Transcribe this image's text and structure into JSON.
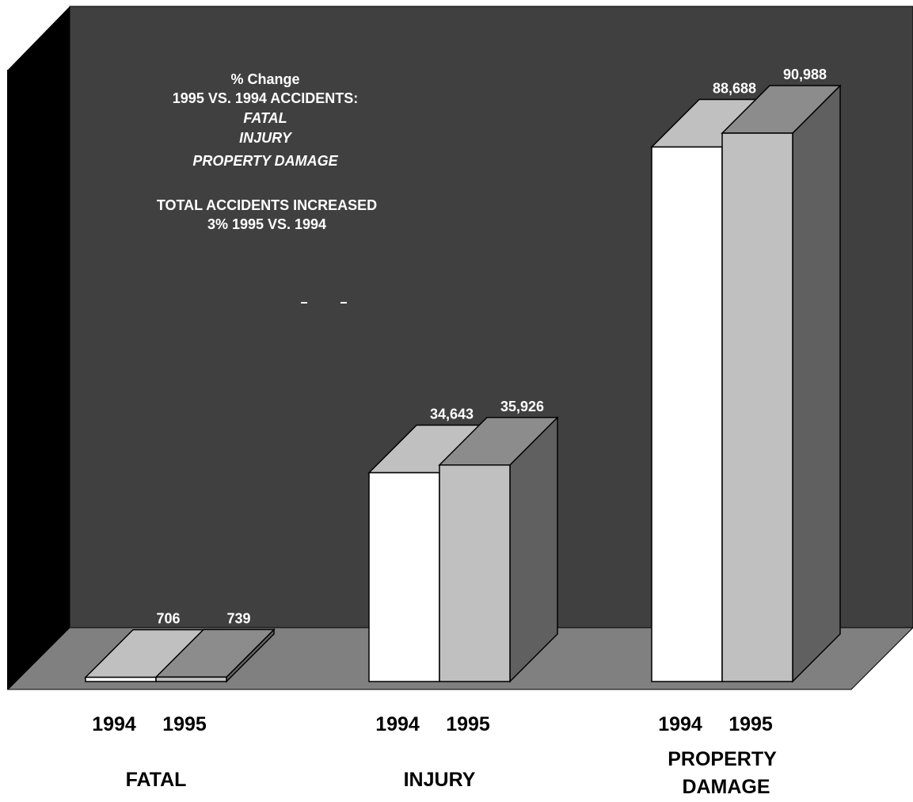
{
  "chart_data": {
    "type": "bar",
    "title_lines": [
      "% Change",
      "1995 VS. 1994 ACCIDENTS:"
    ],
    "italic_lines": [
      "FATAL",
      "INJURY",
      "PROPERTY DAMAGE"
    ],
    "note_lines": [
      "TOTAL ACCIDENTS INCREASED",
      "3% 1995 VS. 1994"
    ],
    "categories": [
      "FATAL",
      "INJURY",
      "PROPERTY DAMAGE"
    ],
    "category_label_lines": [
      [
        "FATAL"
      ],
      [
        "INJURY"
      ],
      [
        "PROPERTY",
        "DAMAGE"
      ]
    ],
    "series": [
      {
        "name": "1994",
        "values": [
          706,
          34643,
          88688
        ]
      },
      {
        "name": "1995",
        "values": [
          739,
          35926,
          90988
        ]
      }
    ],
    "value_labels": [
      [
        "706",
        "34,643",
        "88,688"
      ],
      [
        "739",
        "35,926",
        "90,988"
      ]
    ],
    "ylim": [
      0,
      100000
    ],
    "grid": false,
    "colors": {
      "back_wall": "#404040",
      "side_wall": "#000000",
      "floor": "#808080",
      "bar_1994_front": "#ffffff",
      "bar_1994_top": "#c0c0c0",
      "bar_1995_front": "#c0c0c0",
      "bar_1995_top": "#8c8c8c",
      "bar_1995_side": "#606060"
    }
  }
}
